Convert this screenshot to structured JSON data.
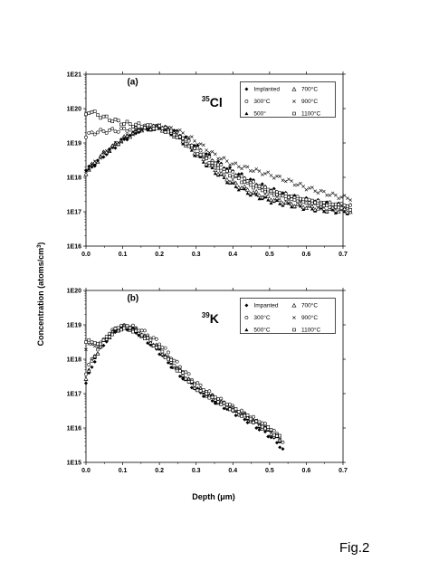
{
  "figure_caption": "Fig.2",
  "shared": {
    "ylabel": "Concentration (atoms/cm",
    "ylabel_sup": "3",
    "ylabel_end": ")",
    "xlabel": "Depth (μm)"
  },
  "chart_data": [
    {
      "type": "scatter",
      "panel_label": "(a)",
      "isotope_mass": "35",
      "isotope_symbol": "Cl",
      "xlim": [
        0.0,
        0.7
      ],
      "ylim": [
        1e+16,
        1e+21
      ],
      "yscale": "log",
      "xticks": [
        "0.0",
        "0.1",
        "0.2",
        "0.3",
        "0.4",
        "0.5",
        "0.6",
        "0.7"
      ],
      "yticks": [
        "1E16",
        "1E17",
        "1E18",
        "1E19",
        "1E20",
        "1E21"
      ],
      "legend": {
        "placement": "top-right",
        "columns": 2
      },
      "series": [
        {
          "name": "Implanted",
          "marker": "diamond-filled",
          "points": [
            [
              0.0,
              1.6e+18
            ],
            [
              0.02,
              2.2e+18
            ],
            [
              0.05,
              4.5e+18
            ],
            [
              0.1,
              1.2e+19
            ],
            [
              0.15,
              2.5e+19
            ],
            [
              0.2,
              3e+19
            ],
            [
              0.25,
              2e+19
            ],
            [
              0.3,
              8e+18
            ],
            [
              0.35,
              3e+18
            ],
            [
              0.4,
              1.5e+18
            ],
            [
              0.45,
              8e+17
            ],
            [
              0.5,
              4.5e+17
            ],
            [
              0.55,
              3e+17
            ],
            [
              0.6,
              2.2e+17
            ],
            [
              0.65,
              1.8e+17
            ],
            [
              0.7,
              1.5e+17
            ],
            [
              0.72,
              1.4e+17
            ]
          ]
        },
        {
          "name": "300°C",
          "marker": "circle-open",
          "points": [
            [
              0.0,
              1.6e+19
            ],
            [
              0.02,
              2e+19
            ],
            [
              0.05,
              2.2e+19
            ],
            [
              0.1,
              2.4e+19
            ],
            [
              0.15,
              2.8e+19
            ],
            [
              0.2,
              2.9e+19
            ],
            [
              0.25,
              1.8e+19
            ],
            [
              0.3,
              7e+18
            ],
            [
              0.35,
              2.6e+18
            ],
            [
              0.4,
              1.3e+18
            ],
            [
              0.45,
              7e+17
            ],
            [
              0.5,
              4e+17
            ],
            [
              0.55,
              2.8e+17
            ],
            [
              0.6,
              2.1e+17
            ],
            [
              0.65,
              1.7e+17
            ],
            [
              0.7,
              1.5e+17
            ],
            [
              0.72,
              1.4e+17
            ]
          ]
        },
        {
          "name": "500°",
          "marker": "triangle-filled",
          "points": [
            [
              0.0,
              1.4e+18
            ],
            [
              0.02,
              2.4e+18
            ],
            [
              0.05,
              5e+18
            ],
            [
              0.1,
              1.3e+19
            ],
            [
              0.15,
              2.6e+19
            ],
            [
              0.2,
              2.8e+19
            ],
            [
              0.25,
              1.5e+19
            ],
            [
              0.3,
              4.5e+18
            ],
            [
              0.35,
              1.5e+18
            ],
            [
              0.4,
              6e+17
            ],
            [
              0.45,
              3.3e+17
            ],
            [
              0.5,
              2.1e+17
            ],
            [
              0.55,
              1.6e+17
            ],
            [
              0.6,
              1.3e+17
            ],
            [
              0.65,
              1.1e+17
            ],
            [
              0.7,
              1e+17
            ],
            [
              0.72,
              1e+17
            ]
          ]
        },
        {
          "name": "700°C",
          "marker": "triangle-open",
          "points": [
            [
              0.0,
              1.4e+18
            ],
            [
              0.02,
              2.4e+18
            ],
            [
              0.05,
              5e+18
            ],
            [
              0.1,
              1.3e+19
            ],
            [
              0.15,
              2.6e+19
            ],
            [
              0.2,
              2.8e+19
            ],
            [
              0.25,
              1.6e+19
            ],
            [
              0.3,
              5e+18
            ],
            [
              0.35,
              1.7e+18
            ],
            [
              0.4,
              7e+17
            ],
            [
              0.45,
              3.8e+17
            ],
            [
              0.5,
              2.5e+17
            ],
            [
              0.55,
              1.8e+17
            ],
            [
              0.6,
              1.4e+17
            ],
            [
              0.65,
              1.2e+17
            ],
            [
              0.7,
              1.1e+17
            ],
            [
              0.72,
              1.05e+17
            ]
          ]
        },
        {
          "name": "900°C",
          "marker": "cross",
          "points": [
            [
              0.0,
              1.6e+18
            ],
            [
              0.02,
              2.4e+18
            ],
            [
              0.05,
              5e+18
            ],
            [
              0.1,
              1.3e+19
            ],
            [
              0.15,
              2.6e+19
            ],
            [
              0.2,
              3e+19
            ],
            [
              0.25,
              2.3e+19
            ],
            [
              0.3,
              1.1e+19
            ],
            [
              0.35,
              4.5e+18
            ],
            [
              0.4,
              2.4e+18
            ],
            [
              0.45,
              1.7e+18
            ],
            [
              0.5,
              1.2e+18
            ],
            [
              0.55,
              8e+17
            ],
            [
              0.6,
              5e+17
            ],
            [
              0.65,
              3.5e+17
            ],
            [
              0.7,
              2.6e+17
            ],
            [
              0.72,
              2.5e+17
            ]
          ]
        },
        {
          "name": "1100°C",
          "marker": "square-open",
          "points": [
            [
              0.0,
              6.5e+19
            ],
            [
              0.01,
              9e+19
            ],
            [
              0.02,
              7.5e+19
            ],
            [
              0.05,
              5.5e+19
            ],
            [
              0.1,
              3.8e+19
            ],
            [
              0.15,
              3.2e+19
            ],
            [
              0.2,
              2.8e+19
            ],
            [
              0.25,
              1.6e+19
            ],
            [
              0.3,
              6e+18
            ],
            [
              0.35,
              2.3e+18
            ],
            [
              0.4,
              1.1e+18
            ],
            [
              0.45,
              6e+17
            ],
            [
              0.5,
              3.8e+17
            ],
            [
              0.55,
              2.6e+17
            ],
            [
              0.6,
              2e+17
            ],
            [
              0.65,
              1.6e+17
            ],
            [
              0.7,
              1.4e+17
            ],
            [
              0.72,
              1.3e+17
            ]
          ]
        }
      ]
    },
    {
      "type": "scatter",
      "panel_label": "(b)",
      "isotope_mass": "39",
      "isotope_symbol": "K",
      "xlim": [
        0.0,
        0.7
      ],
      "ylim": [
        1000000000000000.0,
        1e+20
      ],
      "yscale": "log",
      "xticks": [
        "0.0",
        "0.1",
        "0.2",
        "0.3",
        "0.4",
        "0.5",
        "0.6",
        "0.7"
      ],
      "yticks": [
        "1E15",
        "1E16",
        "1E17",
        "1E18",
        "1E19",
        "1E20"
      ],
      "legend": {
        "placement": "top-right",
        "columns": 2
      },
      "series": [
        {
          "name": "Impanted",
          "marker": "diamond-filled",
          "points": [
            [
              0.0,
              2e+17
            ],
            [
              0.02,
              8e+17
            ],
            [
              0.05,
              3e+18
            ],
            [
              0.08,
              7e+18
            ],
            [
              0.1,
              8.5e+18
            ],
            [
              0.12,
              8e+18
            ],
            [
              0.15,
              5e+18
            ],
            [
              0.2,
              1.6e+18
            ],
            [
              0.25,
              4e+17
            ],
            [
              0.3,
              1.3e+17
            ],
            [
              0.35,
              6e+16
            ],
            [
              0.4,
              3e+16
            ],
            [
              0.45,
              1.4e+16
            ],
            [
              0.5,
              6000000000000000.0
            ],
            [
              0.53,
              3000000000000000.0
            ],
            [
              0.54,
              2000000000000000.0
            ]
          ]
        },
        {
          "name": "300°C",
          "marker": "circle-open",
          "points": [
            [
              0.0,
              4e+17
            ],
            [
              0.02,
              1.2e+18
            ],
            [
              0.05,
              4e+18
            ],
            [
              0.08,
              7.5e+18
            ],
            [
              0.1,
              9e+18
            ],
            [
              0.12,
              9e+18
            ],
            [
              0.15,
              7e+18
            ],
            [
              0.2,
              3e+18
            ],
            [
              0.25,
              7e+17
            ],
            [
              0.3,
              2e+17
            ],
            [
              0.35,
              8e+16
            ],
            [
              0.4,
              4e+16
            ],
            [
              0.45,
              2e+16
            ],
            [
              0.5,
              1e+16
            ],
            [
              0.53,
              5000000000000000.0
            ],
            [
              0.54,
              3500000000000000.0
            ]
          ]
        },
        {
          "name": "500°C",
          "marker": "triangle-filled",
          "points": [
            [
              0.0,
              3e+17
            ],
            [
              0.02,
              1e+18
            ],
            [
              0.05,
              3.5e+18
            ],
            [
              0.08,
              7e+18
            ],
            [
              0.1,
              8.5e+18
            ],
            [
              0.12,
              8e+18
            ],
            [
              0.15,
              5.5e+18
            ],
            [
              0.2,
              2e+18
            ],
            [
              0.25,
              5e+17
            ],
            [
              0.3,
              1.5e+17
            ],
            [
              0.35,
              7e+16
            ],
            [
              0.4,
              3.5e+16
            ],
            [
              0.45,
              1.7e+16
            ],
            [
              0.5,
              8000000000000000.0
            ],
            [
              0.53,
              4000000000000000.0
            ]
          ]
        },
        {
          "name": "700°C",
          "marker": "triangle-open",
          "points": [
            [
              0.0,
              3e+17
            ],
            [
              0.02,
              1e+18
            ],
            [
              0.05,
              3.5e+18
            ],
            [
              0.08,
              7e+18
            ],
            [
              0.1,
              8.5e+18
            ],
            [
              0.12,
              8e+18
            ],
            [
              0.15,
              5.5e+18
            ],
            [
              0.2,
              2e+18
            ],
            [
              0.25,
              5e+17
            ],
            [
              0.3,
              1.5e+17
            ],
            [
              0.35,
              7e+16
            ],
            [
              0.4,
              3.5e+16
            ],
            [
              0.45,
              1.7e+16
            ],
            [
              0.5,
              8000000000000000.0
            ],
            [
              0.53,
              4000000000000000.0
            ]
          ]
        },
        {
          "name": "900°C",
          "marker": "cross",
          "points": [
            [
              0.0,
              2e+18
            ],
            [
              0.01,
              3.5e+18
            ],
            [
              0.02,
              2e+18
            ],
            [
              0.05,
              3.5e+18
            ],
            [
              0.08,
              7e+18
            ],
            [
              0.1,
              8.5e+18
            ],
            [
              0.12,
              8e+18
            ],
            [
              0.15,
              5.5e+18
            ],
            [
              0.2,
              2e+18
            ],
            [
              0.25,
              5e+17
            ],
            [
              0.3,
              1.5e+17
            ],
            [
              0.35,
              7e+16
            ],
            [
              0.4,
              3.5e+16
            ],
            [
              0.45,
              1.8e+16
            ],
            [
              0.5,
              9000000000000000.0
            ],
            [
              0.53,
              5000000000000000.0
            ]
          ]
        },
        {
          "name": "1100°C",
          "marker": "square-open",
          "points": [
            [
              0.0,
              3e+18
            ],
            [
              0.01,
              4.5e+18
            ],
            [
              0.02,
              2.5e+18
            ],
            [
              0.05,
              3.5e+18
            ],
            [
              0.08,
              7e+18
            ],
            [
              0.1,
              8.5e+18
            ],
            [
              0.12,
              8e+18
            ],
            [
              0.15,
              5.5e+18
            ],
            [
              0.2,
              2e+18
            ],
            [
              0.25,
              5e+17
            ],
            [
              0.3,
              1.5e+17
            ],
            [
              0.35,
              7e+16
            ],
            [
              0.4,
              3.5e+16
            ],
            [
              0.45,
              1.8e+16
            ],
            [
              0.5,
              9000000000000000.0
            ],
            [
              0.53,
              5000000000000000.0
            ]
          ]
        }
      ]
    }
  ]
}
